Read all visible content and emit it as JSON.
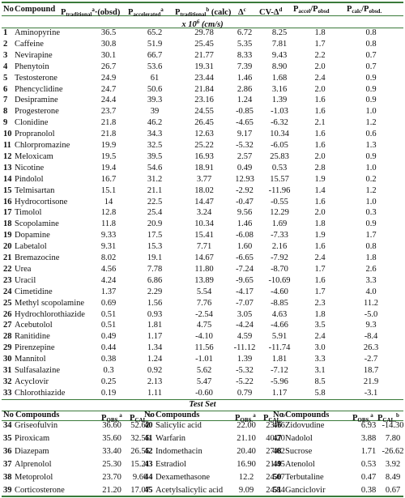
{
  "table": {
    "header": [
      [
        {
          "text": "No"
        }
      ],
      [
        {
          "text": "Compound"
        }
      ],
      [
        {
          "text": "P"
        },
        {
          "text": "traditional",
          "pos": "sub"
        },
        {
          "text": "a",
          "pos": "sup"
        },
        {
          "text": "·(obsd)"
        }
      ],
      [
        {
          "text": "P"
        },
        {
          "text": "accelerated",
          "pos": "sub"
        },
        {
          "text": "a",
          "pos": "sup"
        }
      ],
      [
        {
          "text": "P"
        },
        {
          "text": "traditional",
          "pos": "sub"
        },
        {
          "text": "b",
          "pos": "sup"
        },
        {
          "text": " (calc)"
        }
      ],
      [
        {
          "text": "Δ"
        },
        {
          "text": "c",
          "pos": "sup"
        }
      ],
      [
        {
          "text": "CV-Δ"
        },
        {
          "text": "d",
          "pos": "sup"
        }
      ],
      [
        {
          "text": "P"
        },
        {
          "text": "accel",
          "pos": "sub"
        },
        {
          "text": "/P"
        },
        {
          "text": "obsd",
          "pos": "sub"
        }
      ],
      [
        {
          "text": "P"
        },
        {
          "text": "calc",
          "pos": "sub"
        },
        {
          "text": "/P"
        },
        {
          "text": "obsd.",
          "pos": "sub"
        }
      ]
    ],
    "unit": [
      {
        "text": "x 10"
      },
      {
        "text": "6",
        "pos": "sup"
      },
      {
        "text": " (cm/s)"
      }
    ],
    "rows": [
      [
        "1",
        "Aminopyrine",
        "36.5",
        "65.2",
        "29.78",
        "6.72",
        "8.25",
        "1.8",
        "0.8"
      ],
      [
        "2",
        "Caffeine",
        "30.8",
        "51.9",
        "25.45",
        "5.35",
        "7.81",
        "1.7",
        "0.8"
      ],
      [
        "3",
        "Nevirapine",
        "30.1",
        "66.7",
        "21.77",
        "8.33",
        "9.43",
        "2.2",
        "0.7"
      ],
      [
        "4",
        "Phenytoin",
        "26.7",
        "53.6",
        "19.31",
        "7.39",
        "8.90",
        "2.0",
        "0.7"
      ],
      [
        "5",
        "Testosterone",
        "24.9",
        "61",
        "23.44",
        "1.46",
        "1.68",
        "2.4",
        "0.9"
      ],
      [
        "6",
        "Phencyclidine",
        "24.7",
        "50.6",
        "21.84",
        "2.86",
        "3.16",
        "2.0",
        "0.9"
      ],
      [
        "7",
        "Desipramine",
        "24.4",
        "39.3",
        "23.16",
        "1.24",
        "1.39",
        "1.6",
        "0.9"
      ],
      [
        "8",
        "Progesterone",
        "23.7",
        "39",
        "24.55",
        "-0.85",
        "-1.03",
        "1.6",
        "1.0"
      ],
      [
        "9",
        "Clonidine",
        "21.8",
        "46.2",
        "26.45",
        "-4.65",
        "-6.32",
        "2.1",
        "1.2"
      ],
      [
        "10",
        "Propranolol",
        "21.8",
        "34.3",
        "12.63",
        "9.17",
        "10.34",
        "1.6",
        "0.6"
      ],
      [
        "11",
        "Chlorpromazine",
        "19.9",
        "32.5",
        "25.22",
        "-5.32",
        "-6.05",
        "1.6",
        "1.3"
      ],
      [
        "12",
        "Meloxicam",
        "19.5",
        "39.5",
        "16.93",
        "2.57",
        "25.83",
        "2.0",
        "0.9"
      ],
      [
        "13",
        "Nicotine",
        "19.4",
        "54.6",
        "18.91",
        "0.49",
        "0.53",
        "2.8",
        "1.0"
      ],
      [
        "14",
        "Pindolol",
        "16.7",
        "31.2",
        "3.77",
        "12.93",
        "15.57",
        "1.9",
        "0.2"
      ],
      [
        "15",
        "Telmisartan",
        "15.1",
        "21.1",
        "18.02",
        "-2.92",
        "-11.96",
        "1.4",
        "1.2"
      ],
      [
        "16",
        "Hydrocortisone",
        "14",
        "22.5",
        "14.47",
        "-0.47",
        "-0.55",
        "1.6",
        "1.0"
      ],
      [
        "17",
        "Timolol",
        "12.8",
        "25.4",
        "3.24",
        "9.56",
        "12.29",
        "2.0",
        "0.3"
      ],
      [
        "18",
        "Scopolamine",
        "11.8",
        "20.9",
        "10.34",
        "1.46",
        "1.69",
        "1.8",
        "0.9"
      ],
      [
        "19",
        "Dopamine",
        "9.33",
        "17.5",
        "15.41",
        "-6.08",
        "-7.33",
        "1.9",
        "1.7"
      ],
      [
        "20",
        "Labetalol",
        "9.31",
        "15.3",
        "7.71",
        "1.60",
        "2.16",
        "1.6",
        "0.8"
      ],
      [
        "21",
        "Bremazocine",
        "8.02",
        "19.1",
        "14.67",
        "-6.65",
        "-7.92",
        "2.4",
        "1.8"
      ],
      [
        "22",
        "Urea",
        "4.56",
        "7.78",
        "11.80",
        "-7.24",
        "-8.70",
        "1.7",
        "2.6"
      ],
      [
        "23",
        "Uracil",
        "4.24",
        "6.86",
        "13.89",
        "-9.65",
        "-10.69",
        "1.6",
        "3.3"
      ],
      [
        "24",
        "Cimetidine",
        "1.37",
        "2.29",
        "5.54",
        "-4.17",
        "-4.60",
        "1.7",
        "4.0"
      ],
      [
        "25",
        "Methyl scopolamine",
        "0.69",
        "1.56",
        "7.76",
        "-7.07",
        "-8.85",
        "2.3",
        "11.2"
      ],
      [
        "26",
        "Hydrochlorothiazide",
        "0.51",
        "0.93",
        "-2.54",
        "3.05",
        "4.63",
        "1.8",
        "-5.0"
      ],
      [
        "27",
        "Acebutolol",
        "0.51",
        "1.81",
        "4.75",
        "-4.24",
        "-4.66",
        "3.5",
        "9.3"
      ],
      [
        "28",
        "Ranitidine",
        "0.49",
        "1.17",
        "-4.10",
        "4.59",
        "5.91",
        "2.4",
        "-8.4"
      ],
      [
        "29",
        "Pirenzepine",
        "0.44",
        "1.34",
        "11.56",
        "-11.12",
        "-11.74",
        "3.0",
        "26.3"
      ],
      [
        "30",
        "Mannitol",
        "0.38",
        "1.24",
        "-1.01",
        "1.39",
        "1.81",
        "3.3",
        "-2.7"
      ],
      [
        "31",
        "Sulfasalazine",
        "0.3",
        "0.92",
        "5.62",
        "-5.32",
        "-7.12",
        "3.1",
        "18.7"
      ],
      [
        "32",
        "Acyclovir",
        "0.25",
        "2.13",
        "5.47",
        "-5.22",
        "-5.96",
        "8.5",
        "21.9"
      ],
      [
        "33",
        "Chlorothiazide",
        "0.19",
        "1.11",
        "-0.60",
        "0.79",
        "1.17",
        "5.8",
        "-3.1"
      ]
    ]
  },
  "test_set": {
    "title": "Test Set",
    "header": [
      [
        {
          "text": "No"
        }
      ],
      [
        {
          "text": "Compounds"
        }
      ],
      [
        {
          "text": "P"
        },
        {
          "text": "OBS.",
          "pos": "sub"
        },
        {
          "text": "a",
          "pos": "sup"
        }
      ],
      [
        {
          "text": "P"
        },
        {
          "text": "CAL.",
          "pos": "sub"
        },
        {
          "text": "b",
          "pos": "sup"
        }
      ],
      [
        {
          "text": "No"
        }
      ],
      [
        {
          "text": "Compounds"
        }
      ],
      [
        {
          "text": "P"
        },
        {
          "text": "OBS.",
          "pos": "sub"
        },
        {
          "text": "a",
          "pos": "sup"
        }
      ],
      [
        {
          "text": "P"
        },
        {
          "text": "CAL.",
          "pos": "sub"
        },
        {
          "text": "b",
          "pos": "sup"
        }
      ],
      [
        {
          "text": "No"
        }
      ],
      [
        {
          "text": "Compounds"
        }
      ],
      [
        {
          "text": "P"
        },
        {
          "text": "OBS.",
          "pos": "sub"
        },
        {
          "text": "a",
          "pos": "sup"
        }
      ],
      [
        {
          "text": "P"
        },
        {
          "text": "CAL.",
          "pos": "sub"
        },
        {
          "text": "b",
          "pos": "sup"
        }
      ]
    ],
    "rows": [
      [
        "34",
        "Griseofulvin",
        "36.60",
        "52.62",
        "40",
        "Salicylic acid",
        "22.00",
        "23.76",
        "46",
        "Zidovudine",
        "6.93",
        "-14.30"
      ],
      [
        "35",
        "Piroxicam",
        "35.60",
        "32.55",
        "41",
        "Warfarin",
        "21.10",
        "40.20",
        "47",
        "Nadolol",
        "3.88",
        "7.80"
      ],
      [
        "36",
        "Diazepam",
        "33.40",
        "26.55",
        "42",
        "Indomethacin",
        "20.40",
        "27.62",
        "48",
        "Sucrose",
        "1.71",
        "-26.62"
      ],
      [
        "37",
        "Alprenolol",
        "25.30",
        "15.21",
        "43",
        "Estradiol",
        "16.90",
        "21.45",
        "49",
        "Atenolol",
        "0.53",
        "3.92"
      ],
      [
        "38",
        "Metoprolol",
        "23.70",
        "9.66",
        "44",
        "Dexamethasone",
        "12.2",
        "24.67",
        "50",
        "Terbutaline",
        "0.47",
        "8.49"
      ],
      [
        "39",
        "Corticosterone",
        "21.20",
        "17.07",
        "45",
        "Acetylsalicylic acid",
        "9.09",
        "24.84",
        "51",
        "Ganciclovir",
        "0.38",
        "0.67"
      ]
    ]
  }
}
